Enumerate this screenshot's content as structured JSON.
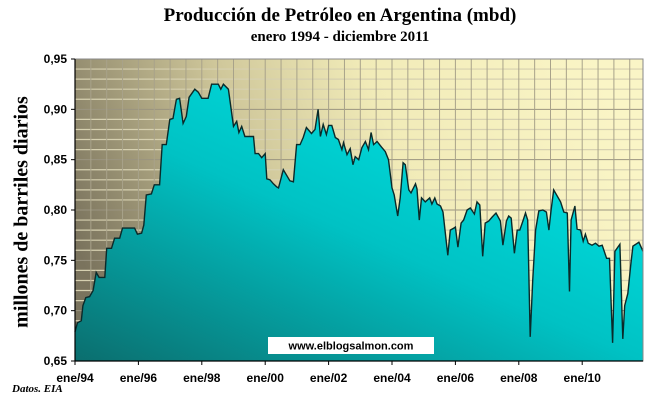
{
  "chart_data": {
    "type": "area",
    "title": "Producción de Petróleo en Argentina (mbd)",
    "subtitle": "enero 1994 - diciembre 2011",
    "xlabel": "",
    "ylabel": "millones de barriles diarios",
    "source": "Datos. EIA",
    "watermark": "www.elblogsalmon.com",
    "ylim": [
      0.65,
      0.95
    ],
    "xlim": [
      1994,
      2011.95
    ],
    "y_ticks": [
      "0,65",
      "0,70",
      "0,75",
      "0,80",
      "0,85",
      "0,90",
      "0,95"
    ],
    "y_tick_values": [
      0.65,
      0.7,
      0.75,
      0.8,
      0.85,
      0.9,
      0.95
    ],
    "x_ticks": [
      "ene/94",
      "ene/96",
      "ene/98",
      "ene/00",
      "ene/02",
      "ene/04",
      "ene/06",
      "ene/08",
      "ene/10"
    ],
    "x_tick_values": [
      1994,
      1996,
      1998,
      2000,
      2002,
      2004,
      2006,
      2008,
      2010
    ],
    "grid": true,
    "colors": {
      "fill_dark": "#0b7272",
      "fill_light": "#00e6e6",
      "line": "#0a2a2a",
      "bg_dark": "#7d7660",
      "bg_light": "#f7f2c0"
    },
    "series": [
      {
        "name": "Producción",
        "points": [
          [
            1994.0,
            0.679
          ],
          [
            1994.08,
            0.688
          ],
          [
            1994.2,
            0.69
          ],
          [
            1994.25,
            0.705
          ],
          [
            1994.34,
            0.713
          ],
          [
            1994.46,
            0.714
          ],
          [
            1994.57,
            0.72
          ],
          [
            1994.67,
            0.738
          ],
          [
            1994.76,
            0.733
          ],
          [
            1994.94,
            0.733
          ],
          [
            1995.0,
            0.762
          ],
          [
            1995.15,
            0.762
          ],
          [
            1995.25,
            0.772
          ],
          [
            1995.41,
            0.772
          ],
          [
            1995.5,
            0.782
          ],
          [
            1995.88,
            0.782
          ],
          [
            1995.97,
            0.776
          ],
          [
            1996.1,
            0.777
          ],
          [
            1996.17,
            0.785
          ],
          [
            1996.25,
            0.815
          ],
          [
            1996.41,
            0.816
          ],
          [
            1996.5,
            0.825
          ],
          [
            1996.67,
            0.825
          ],
          [
            1996.75,
            0.865
          ],
          [
            1996.88,
            0.865
          ],
          [
            1996.99,
            0.89
          ],
          [
            1997.09,
            0.891
          ],
          [
            1997.2,
            0.91
          ],
          [
            1997.3,
            0.911
          ],
          [
            1997.41,
            0.886
          ],
          [
            1997.51,
            0.893
          ],
          [
            1997.6,
            0.912
          ],
          [
            1997.78,
            0.92
          ],
          [
            1997.89,
            0.917
          ],
          [
            1998.0,
            0.911
          ],
          [
            1998.2,
            0.911
          ],
          [
            1998.31,
            0.925
          ],
          [
            1998.52,
            0.925
          ],
          [
            1998.6,
            0.92
          ],
          [
            1998.68,
            0.925
          ],
          [
            1998.84,
            0.92
          ],
          [
            1999.0,
            0.883
          ],
          [
            1999.1,
            0.888
          ],
          [
            1999.17,
            0.877
          ],
          [
            1999.26,
            0.883
          ],
          [
            1999.36,
            0.873
          ],
          [
            1999.63,
            0.873
          ],
          [
            1999.68,
            0.856
          ],
          [
            1999.79,
            0.856
          ],
          [
            1999.89,
            0.852
          ],
          [
            2000.0,
            0.856
          ],
          [
            2000.05,
            0.831
          ],
          [
            2000.15,
            0.83
          ],
          [
            2000.26,
            0.826
          ],
          [
            2000.36,
            0.823
          ],
          [
            2000.42,
            0.822
          ],
          [
            2000.57,
            0.84
          ],
          [
            2000.78,
            0.829
          ],
          [
            2000.89,
            0.828
          ],
          [
            2000.99,
            0.865
          ],
          [
            2001.1,
            0.865
          ],
          [
            2001.2,
            0.872
          ],
          [
            2001.3,
            0.882
          ],
          [
            2001.46,
            0.876
          ],
          [
            2001.57,
            0.88
          ],
          [
            2001.67,
            0.9
          ],
          [
            2001.74,
            0.873
          ],
          [
            2001.83,
            0.885
          ],
          [
            2001.93,
            0.875
          ],
          [
            2002.0,
            0.884
          ],
          [
            2002.1,
            0.884
          ],
          [
            2002.21,
            0.872
          ],
          [
            2002.31,
            0.87
          ],
          [
            2002.42,
            0.86
          ],
          [
            2002.47,
            0.867
          ],
          [
            2002.58,
            0.855
          ],
          [
            2002.68,
            0.861
          ],
          [
            2002.77,
            0.845
          ],
          [
            2002.84,
            0.853
          ],
          [
            2002.95,
            0.85
          ],
          [
            2003.05,
            0.862
          ],
          [
            2003.16,
            0.868
          ],
          [
            2003.26,
            0.86
          ],
          [
            2003.34,
            0.877
          ],
          [
            2003.42,
            0.865
          ],
          [
            2003.53,
            0.868
          ],
          [
            2003.63,
            0.864
          ],
          [
            2003.79,
            0.858
          ],
          [
            2003.89,
            0.85
          ],
          [
            2004.0,
            0.822
          ],
          [
            2004.07,
            0.815
          ],
          [
            2004.18,
            0.794
          ],
          [
            2004.26,
            0.812
          ],
          [
            2004.35,
            0.847
          ],
          [
            2004.42,
            0.845
          ],
          [
            2004.53,
            0.82
          ],
          [
            2004.6,
            0.817
          ],
          [
            2004.74,
            0.826
          ],
          [
            2004.79,
            0.821
          ],
          [
            2004.86,
            0.79
          ],
          [
            2004.93,
            0.812
          ],
          [
            2005.05,
            0.808
          ],
          [
            2005.19,
            0.812
          ],
          [
            2005.26,
            0.806
          ],
          [
            2005.35,
            0.812
          ],
          [
            2005.42,
            0.806
          ],
          [
            2005.53,
            0.804
          ],
          [
            2005.61,
            0.798
          ],
          [
            2005.76,
            0.755
          ],
          [
            2005.84,
            0.78
          ],
          [
            2005.95,
            0.782
          ],
          [
            2006.0,
            0.783
          ],
          [
            2006.08,
            0.763
          ],
          [
            2006.18,
            0.787
          ],
          [
            2006.26,
            0.79
          ],
          [
            2006.37,
            0.8
          ],
          [
            2006.47,
            0.802
          ],
          [
            2006.6,
            0.796
          ],
          [
            2006.68,
            0.808
          ],
          [
            2006.77,
            0.805
          ],
          [
            2006.86,
            0.754
          ],
          [
            2006.94,
            0.787
          ],
          [
            2007.05,
            0.789
          ],
          [
            2007.16,
            0.793
          ],
          [
            2007.28,
            0.797
          ],
          [
            2007.42,
            0.789
          ],
          [
            2007.5,
            0.765
          ],
          [
            2007.61,
            0.789
          ],
          [
            2007.68,
            0.794
          ],
          [
            2007.76,
            0.792
          ],
          [
            2007.86,
            0.757
          ],
          [
            2007.95,
            0.78
          ],
          [
            2008.03,
            0.78
          ],
          [
            2008.14,
            0.79
          ],
          [
            2008.21,
            0.797
          ],
          [
            2008.28,
            0.79
          ],
          [
            2008.36,
            0.674
          ],
          [
            2008.44,
            0.73
          ],
          [
            2008.53,
            0.78
          ],
          [
            2008.63,
            0.799
          ],
          [
            2008.76,
            0.8
          ],
          [
            2008.87,
            0.798
          ],
          [
            2008.95,
            0.78
          ],
          [
            2009.02,
            0.8
          ],
          [
            2009.1,
            0.82
          ],
          [
            2009.32,
            0.808
          ],
          [
            2009.42,
            0.798
          ],
          [
            2009.53,
            0.797
          ],
          [
            2009.6,
            0.719
          ],
          [
            2009.65,
            0.79
          ],
          [
            2009.77,
            0.804
          ],
          [
            2009.84,
            0.781
          ],
          [
            2009.95,
            0.78
          ],
          [
            2010.03,
            0.769
          ],
          [
            2010.1,
            0.776
          ],
          [
            2010.19,
            0.767
          ],
          [
            2010.31,
            0.765
          ],
          [
            2010.42,
            0.767
          ],
          [
            2010.53,
            0.764
          ],
          [
            2010.63,
            0.765
          ],
          [
            2010.77,
            0.752
          ],
          [
            2010.86,
            0.752
          ],
          [
            2010.96,
            0.668
          ],
          [
            2011.03,
            0.759
          ],
          [
            2011.19,
            0.766
          ],
          [
            2011.28,
            0.672
          ],
          [
            2011.34,
            0.705
          ],
          [
            2011.44,
            0.717
          ],
          [
            2011.53,
            0.745
          ],
          [
            2011.6,
            0.764
          ],
          [
            2011.79,
            0.768
          ],
          [
            2011.95,
            0.759
          ]
        ]
      }
    ]
  }
}
